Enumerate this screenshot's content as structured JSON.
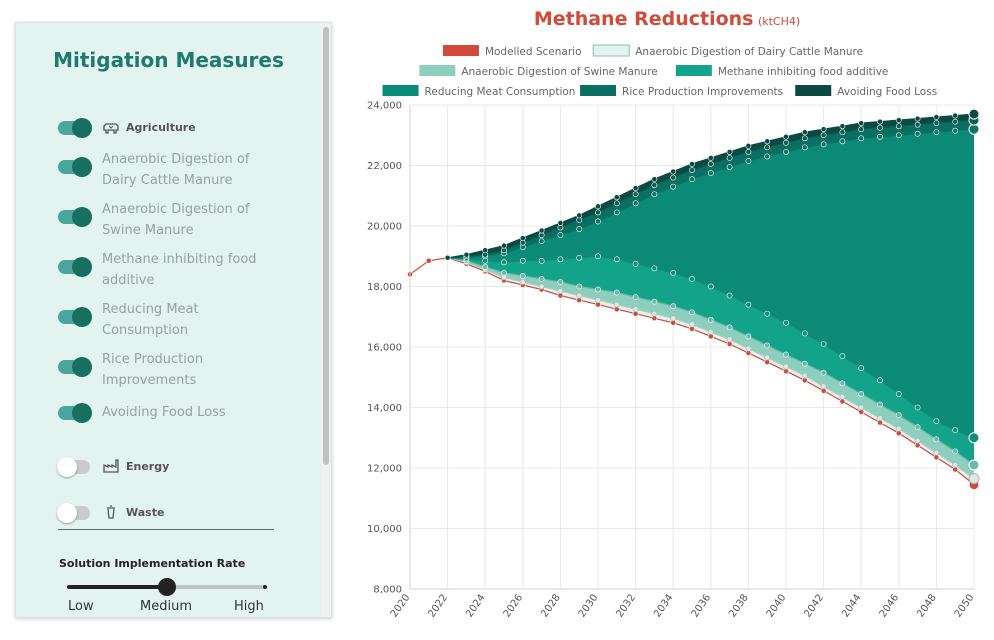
{
  "sidebar": {
    "title": "Mitigation Measures",
    "categories": {
      "agriculture": {
        "label": "Agriculture",
        "enabled": true,
        "icon": "cow-icon"
      },
      "energy": {
        "label": "Energy",
        "enabled": false,
        "icon": "factory-icon"
      },
      "waste": {
        "label": "Waste",
        "enabled": false,
        "icon": "trash-icon"
      }
    },
    "measures": [
      {
        "label": "Anaerobic Digestion of Dairy Cattle Manure",
        "enabled": true
      },
      {
        "label": "Anaerobic Digestion of Swine Manure",
        "enabled": true
      },
      {
        "label": "Methane inhibiting food additive",
        "enabled": true
      },
      {
        "label": "Reducing Meat Consumption",
        "enabled": true
      },
      {
        "label": "Rice Production Improvements",
        "enabled": true
      },
      {
        "label": "Avoiding Food Loss",
        "enabled": true
      }
    ],
    "rate": {
      "title": "Solution Implementation Rate",
      "labels": [
        "Low",
        "Medium",
        "High"
      ],
      "value_index": 1
    }
  },
  "chart_data": {
    "type": "area",
    "title": "Methane Reductions",
    "unit": "(ktCH4)",
    "ylim": [
      8000,
      24000
    ],
    "yticks": [
      8000,
      10000,
      12000,
      14000,
      16000,
      18000,
      20000,
      22000,
      24000
    ],
    "ytick_labels": [
      "8,000",
      "10,000",
      "12,000",
      "14,000",
      "16,000",
      "18,000",
      "20,000",
      "22,000",
      "24,000"
    ],
    "x": [
      2020,
      2021,
      2022,
      2023,
      2024,
      2025,
      2026,
      2027,
      2028,
      2029,
      2030,
      2031,
      2032,
      2033,
      2034,
      2035,
      2036,
      2037,
      2038,
      2039,
      2040,
      2041,
      2042,
      2043,
      2044,
      2045,
      2046,
      2047,
      2048,
      2049,
      2050
    ],
    "xtick_labels": [
      "2020",
      "2022",
      "2024",
      "2026",
      "2028",
      "2030",
      "2032",
      "2034",
      "2036",
      "2038",
      "2040",
      "2042",
      "2044",
      "2046",
      "2048",
      "2050"
    ],
    "legend": [
      {
        "name": "Modelled Scenario",
        "color": "#d24a3a"
      },
      {
        "name": "Anaerobic Digestion of Dairy Cattle Manure",
        "color": "#e0f4ef"
      },
      {
        "name": "Anaerobic Digestion of Swine Manure",
        "color": "#8ccfbf"
      },
      {
        "name": "Methane inhibiting food additive",
        "color": "#13a38a"
      },
      {
        "name": "Reducing Meat Consumption",
        "color": "#0b8a77"
      },
      {
        "name": "Rice Production Improvements",
        "color": "#0b6e62"
      },
      {
        "name": "Avoiding Food Loss",
        "color": "#0a4a42"
      }
    ],
    "series": [
      {
        "name": "Modelled Scenario",
        "color": "#d24a3a",
        "values": [
          18400,
          18850,
          18950,
          18750,
          18500,
          18200,
          18050,
          17900,
          17700,
          17550,
          17400,
          17250,
          17100,
          16950,
          16800,
          16600,
          16350,
          16100,
          15800,
          15500,
          15200,
          14900,
          14550,
          14200,
          13850,
          13500,
          13150,
          12750,
          12350,
          11950,
          11450
        ]
      },
      {
        "name": "Anaerobic Digestion of Dairy Cattle Manure",
        "color": "#e0f4ef",
        "values": [
          null,
          null,
          18950,
          18800,
          18550,
          18300,
          18150,
          18000,
          17850,
          17700,
          17550,
          17400,
          17250,
          17100,
          16950,
          16750,
          16500,
          16250,
          15950,
          15650,
          15350,
          15050,
          14700,
          14350,
          14000,
          13650,
          13300,
          12900,
          12500,
          12100,
          11650
        ]
      },
      {
        "name": "Anaerobic Digestion of Swine Manure",
        "color": "#8ccfbf",
        "values": [
          null,
          null,
          18950,
          18850,
          18650,
          18450,
          18350,
          18250,
          18150,
          18000,
          17900,
          17800,
          17650,
          17500,
          17350,
          17150,
          16900,
          16650,
          16350,
          16050,
          15750,
          15450,
          15150,
          14800,
          14450,
          14100,
          13750,
          13350,
          12950,
          12550,
          12100
        ]
      },
      {
        "name": "Methane inhibiting food additive",
        "color": "#13a38a",
        "values": [
          null,
          null,
          18950,
          18900,
          18850,
          18800,
          18850,
          18850,
          18900,
          18950,
          19000,
          18900,
          18750,
          18600,
          18450,
          18250,
          18000,
          17700,
          17400,
          17100,
          16800,
          16450,
          16100,
          15700,
          15300,
          14900,
          14450,
          14000,
          13550,
          13250,
          13000
        ]
      },
      {
        "name": "Reducing Meat Consumption",
        "color": "#0b8a77",
        "values": [
          null,
          null,
          18950,
          18950,
          19000,
          19100,
          19300,
          19500,
          19700,
          19900,
          20150,
          20450,
          20750,
          21050,
          21300,
          21550,
          21750,
          21950,
          22150,
          22300,
          22450,
          22600,
          22700,
          22800,
          22900,
          22950,
          23000,
          23050,
          23100,
          23150,
          23200
        ]
      },
      {
        "name": "Rice Production Improvements",
        "color": "#0b6e62",
        "values": [
          null,
          null,
          18950,
          19000,
          19050,
          19200,
          19450,
          19700,
          19950,
          20200,
          20450,
          20750,
          21050,
          21350,
          21600,
          21850,
          22050,
          22250,
          22450,
          22600,
          22750,
          22900,
          23000,
          23100,
          23200,
          23250,
          23300,
          23350,
          23400,
          23450,
          23500
        ]
      },
      {
        "name": "Avoiding Food Loss",
        "color": "#0a4a42",
        "values": [
          null,
          null,
          18950,
          19050,
          19200,
          19350,
          19600,
          19850,
          20100,
          20350,
          20650,
          20950,
          21250,
          21550,
          21800,
          22050,
          22250,
          22450,
          22650,
          22800,
          22950,
          23100,
          23200,
          23300,
          23400,
          23450,
          23500,
          23550,
          23600,
          23650,
          23700
        ]
      }
    ]
  }
}
